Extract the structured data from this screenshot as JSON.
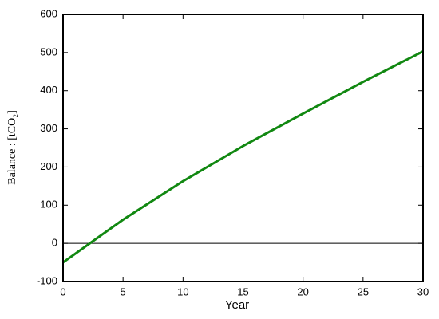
{
  "chart_data": {
    "type": "line",
    "x_label": "Year",
    "y_label": "Balance : [tCO₂]",
    "x": [
      0,
      5,
      10,
      15,
      20,
      25,
      30
    ],
    "series": [
      {
        "color": "#118811",
        "values": [
          -50,
          62,
          163,
          255,
          340,
          423,
          503
        ]
      }
    ],
    "xlim": [
      0,
      30
    ],
    "xticks": [
      0,
      5,
      10,
      15,
      20,
      25,
      30
    ],
    "ylim": [
      -100,
      600
    ],
    "yticks": [
      -100,
      0,
      100,
      200,
      300,
      400,
      500,
      600
    ],
    "zero_line": true
  }
}
